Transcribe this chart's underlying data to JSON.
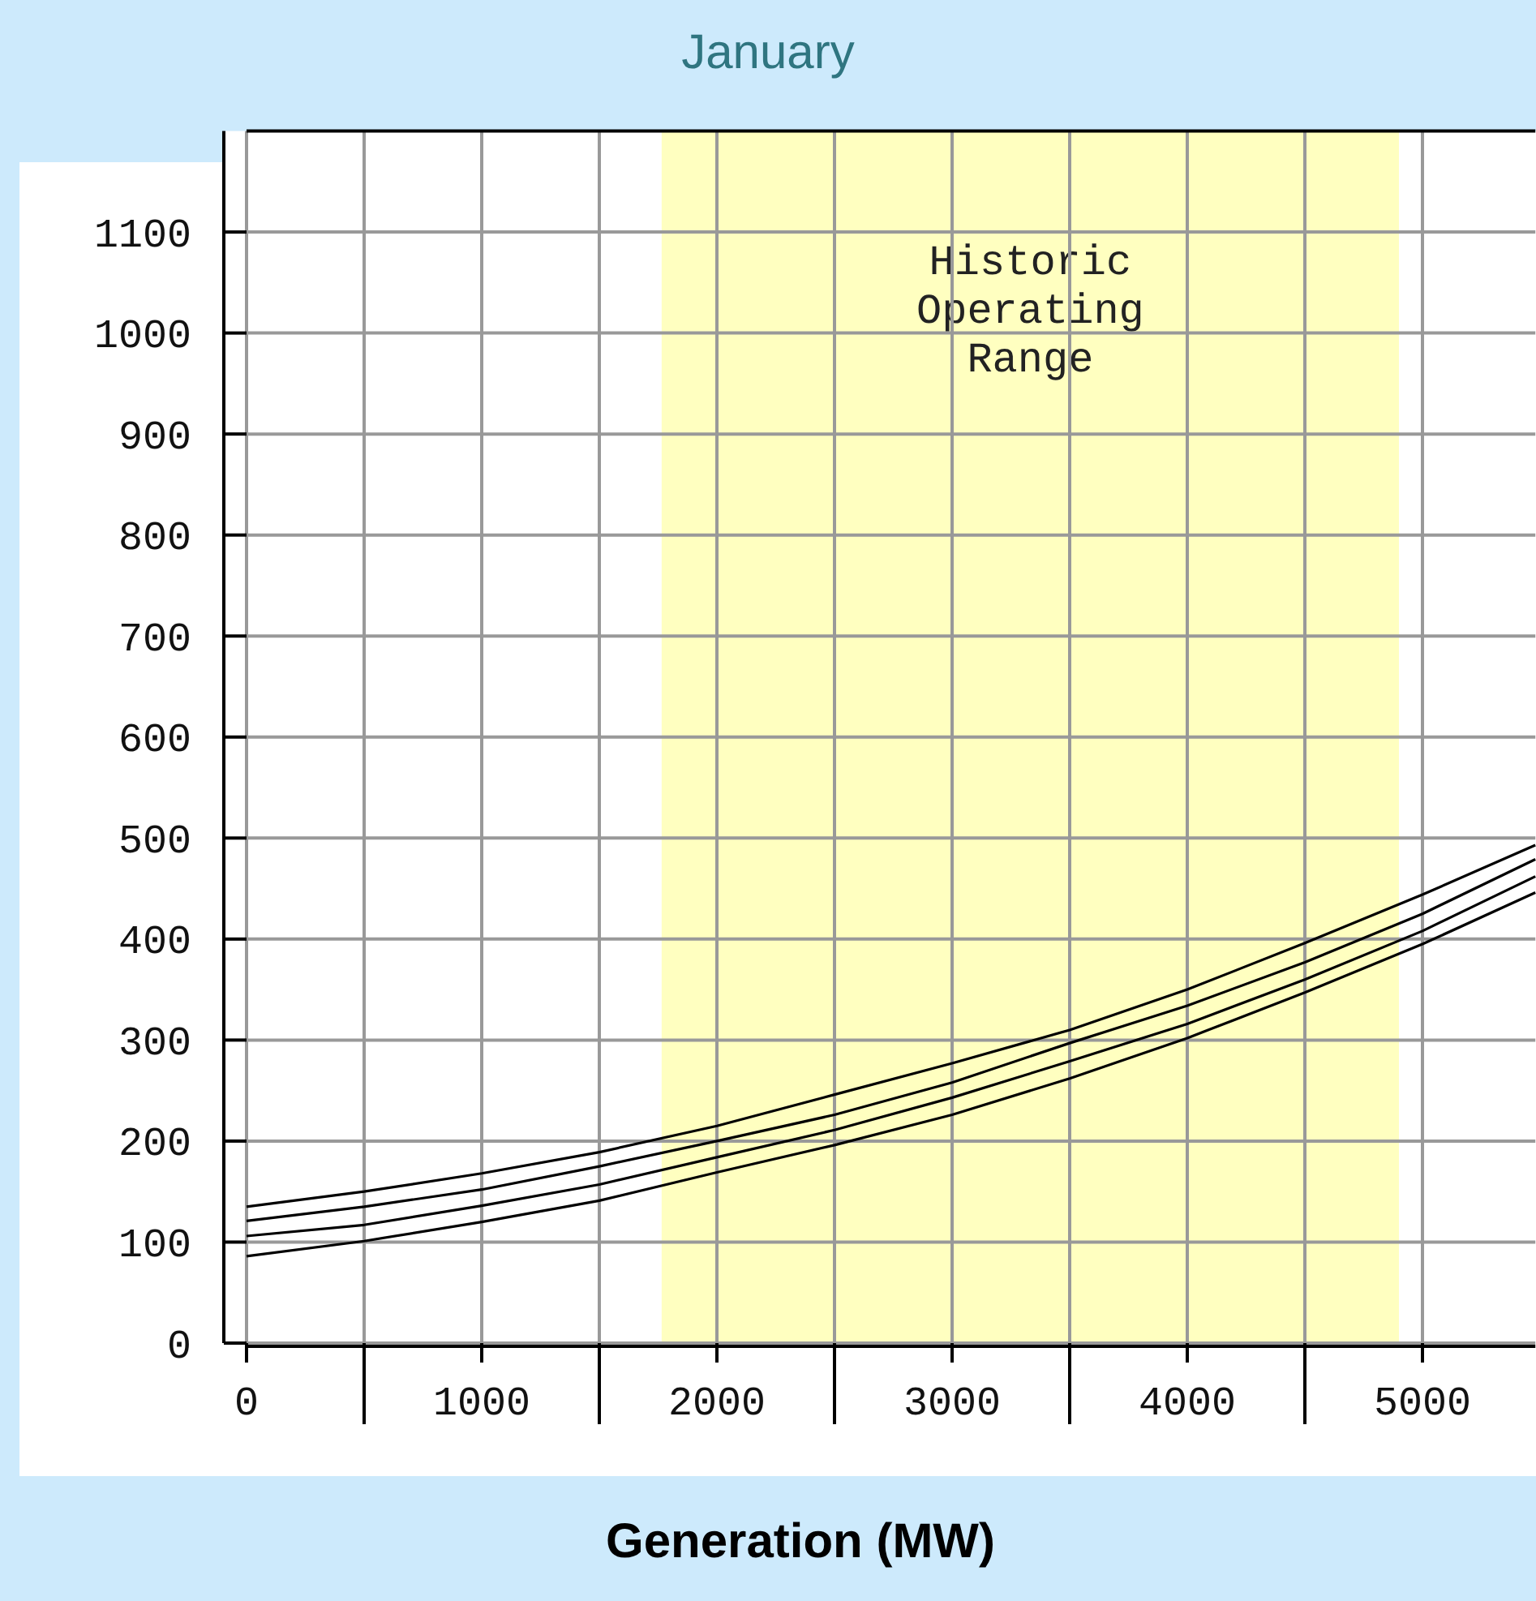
{
  "chart_data": {
    "type": "line",
    "title": "January",
    "xlabel": "Generation (MW)",
    "x": [
      0,
      500,
      1000,
      1500,
      2000,
      2500,
      3000,
      3500,
      4000,
      4500,
      5000,
      5480
    ],
    "series": [
      {
        "color": "#000000",
        "values": [
          135,
          150,
          168,
          189,
          215,
          246,
          277,
          310,
          350,
          396,
          444,
          493
        ]
      },
      {
        "color": "#000000",
        "values": [
          121,
          135,
          152,
          175,
          200,
          226,
          258,
          297,
          334,
          377,
          425,
          479
        ]
      },
      {
        "color": "#000000",
        "values": [
          106,
          117,
          136,
          157,
          184,
          211,
          243,
          279,
          316,
          360,
          408,
          462
        ]
      },
      {
        "color": "#000000",
        "values": [
          86,
          101,
          120,
          141,
          169,
          196,
          226,
          262,
          302,
          347,
          395,
          446
        ]
      }
    ],
    "xlim": [
      0,
      5480
    ],
    "ylim": [
      0,
      1200
    ],
    "xticks": [
      0,
      {
        "value": 500,
        "label": null
      },
      1000,
      {
        "value": 1500,
        "label": null
      },
      2000,
      {
        "value": 2500,
        "label": null
      },
      3000,
      {
        "value": 3500,
        "label": null
      },
      4000,
      {
        "value": 4500,
        "label": null
      },
      5000
    ],
    "yticks": [
      0,
      100,
      200,
      300,
      400,
      500,
      600,
      700,
      800,
      900,
      1000,
      1100
    ],
    "bands": [
      {
        "axis": "x",
        "from": 1765,
        "to": 4900,
        "label": "Historic Operating Range",
        "color": "#ffffc0"
      }
    ],
    "grid": true,
    "marker": "none",
    "line_style": "solid"
  }
}
